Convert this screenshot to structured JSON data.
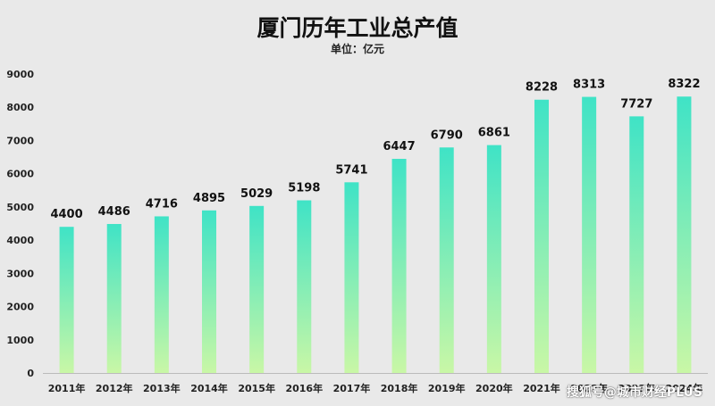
{
  "chart_data": {
    "type": "bar",
    "title": "厦门历年工业总产值",
    "subtitle": "单位：亿元",
    "xlabel": "",
    "ylabel": "",
    "categories": [
      "2011年",
      "2012年",
      "2013年",
      "2014年",
      "2015年",
      "2016年",
      "2017年",
      "2018年",
      "2019年",
      "2020年",
      "2021年",
      "2022年",
      "2023年",
      "2024年"
    ],
    "values": [
      4400,
      4486,
      4716,
      4895,
      5029,
      5198,
      5741,
      6447,
      6790,
      6861,
      8228,
      8313,
      7727,
      8322
    ],
    "ylim": [
      0,
      9000
    ],
    "yticks": [
      0,
      1000,
      2000,
      3000,
      4000,
      5000,
      6000,
      7000,
      8000,
      9000
    ],
    "grid": false,
    "legend": "none",
    "colors": {
      "bar_top": "#3fe3c6",
      "bar_bottom": "#c9f7a6",
      "background": "#e9e9e9"
    }
  },
  "watermark": "搜狐号@城市财经PLUS"
}
